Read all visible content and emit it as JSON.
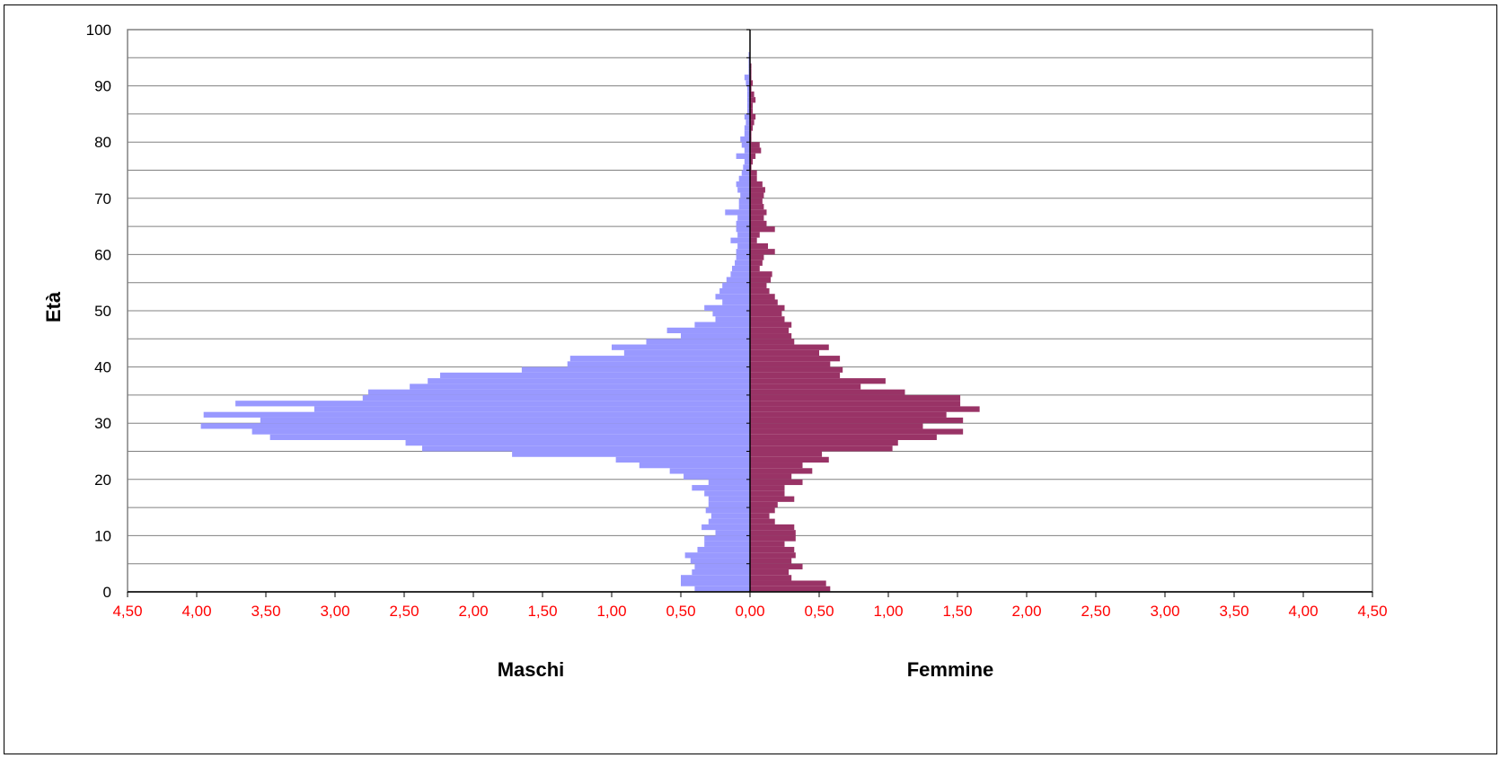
{
  "chart_data": {
    "type": "bar",
    "orientation": "horizontal-pyramid",
    "title": "",
    "ylabel": "Età",
    "xlabel_left": "Maschi",
    "xlabel_right": "Femmine",
    "ylim": [
      0,
      100
    ],
    "xlim": [
      -4.5,
      4.5
    ],
    "y_ticks": [
      "0",
      "10",
      "20",
      "30",
      "40",
      "50",
      "60",
      "70",
      "80",
      "90",
      "100"
    ],
    "x_ticks": [
      "4,50",
      "4,00",
      "3,50",
      "3,00",
      "2,50",
      "2,00",
      "1,50",
      "1,00",
      "0,50",
      "0,00",
      "0,50",
      "1,00",
      "1,50",
      "2,00",
      "2,50",
      "3,00",
      "3,50",
      "4,00",
      "4,50"
    ],
    "grid": true,
    "colors": {
      "male": "#9999ff",
      "female": "#993366",
      "x_tick_text": "#ff0000",
      "grid": "#808080",
      "plot_border": "#808080"
    },
    "ages": [
      0,
      1,
      2,
      3,
      4,
      5,
      6,
      7,
      8,
      9,
      10,
      11,
      12,
      13,
      14,
      15,
      16,
      17,
      18,
      19,
      20,
      21,
      22,
      23,
      24,
      25,
      26,
      27,
      28,
      29,
      30,
      31,
      32,
      33,
      34,
      35,
      36,
      37,
      38,
      39,
      40,
      41,
      42,
      43,
      44,
      45,
      46,
      47,
      48,
      49,
      50,
      51,
      52,
      53,
      54,
      55,
      56,
      57,
      58,
      59,
      60,
      61,
      62,
      63,
      64,
      65,
      66,
      67,
      68,
      69,
      70,
      71,
      72,
      73,
      74,
      75,
      76,
      77,
      78,
      79,
      80,
      81,
      82,
      83,
      84,
      85,
      86,
      87,
      88,
      89,
      90,
      91,
      92,
      93,
      94,
      95,
      96,
      97,
      98,
      99
    ],
    "series": [
      {
        "name": "Maschi",
        "values": [
          0.4,
          0.5,
          0.5,
          0.42,
          0.4,
          0.43,
          0.47,
          0.38,
          0.33,
          0.33,
          0.25,
          0.35,
          0.3,
          0.28,
          0.32,
          0.3,
          0.3,
          0.33,
          0.42,
          0.3,
          0.48,
          0.58,
          0.8,
          0.97,
          1.72,
          2.37,
          2.49,
          3.47,
          3.6,
          3.97,
          3.54,
          3.95,
          3.15,
          3.72,
          2.8,
          2.76,
          2.46,
          2.33,
          2.24,
          1.65,
          1.32,
          1.3,
          0.91,
          1.0,
          0.75,
          0.5,
          0.6,
          0.4,
          0.25,
          0.27,
          0.33,
          0.2,
          0.25,
          0.22,
          0.2,
          0.17,
          0.14,
          0.13,
          0.11,
          0.1,
          0.1,
          0.09,
          0.14,
          0.09,
          0.1,
          0.1,
          0.09,
          0.18,
          0.08,
          0.08,
          0.07,
          0.09,
          0.1,
          0.08,
          0.06,
          0.05,
          0.04,
          0.1,
          0.04,
          0.06,
          0.07,
          0.04,
          0.04,
          0.03,
          0.04,
          0.02,
          0.02,
          0.02,
          0.02,
          0.02,
          0.03,
          0.04,
          0.01,
          0.01,
          0.01,
          0.01,
          0.0,
          0.0,
          0.0,
          0.0
        ]
      },
      {
        "name": "Femmine",
        "values": [
          0.58,
          0.55,
          0.3,
          0.28,
          0.38,
          0.3,
          0.33,
          0.32,
          0.25,
          0.33,
          0.33,
          0.32,
          0.18,
          0.14,
          0.18,
          0.2,
          0.32,
          0.25,
          0.25,
          0.38,
          0.3,
          0.45,
          0.38,
          0.57,
          0.52,
          1.03,
          1.07,
          1.35,
          1.54,
          1.25,
          1.54,
          1.42,
          1.66,
          1.52,
          1.52,
          1.12,
          0.8,
          0.98,
          0.65,
          0.67,
          0.58,
          0.65,
          0.5,
          0.57,
          0.32,
          0.3,
          0.28,
          0.3,
          0.25,
          0.23,
          0.25,
          0.2,
          0.18,
          0.14,
          0.12,
          0.15,
          0.16,
          0.07,
          0.09,
          0.1,
          0.18,
          0.13,
          0.05,
          0.07,
          0.18,
          0.12,
          0.1,
          0.12,
          0.1,
          0.09,
          0.1,
          0.11,
          0.09,
          0.05,
          0.05,
          0.01,
          0.02,
          0.04,
          0.08,
          0.07,
          0.01,
          0.01,
          0.02,
          0.03,
          0.04,
          0.02,
          0.02,
          0.04,
          0.03,
          0.01,
          0.02,
          0.01,
          0.01,
          0.01,
          0.0,
          0.0,
          0.0,
          0.0,
          0.0,
          0.0
        ]
      }
    ]
  }
}
